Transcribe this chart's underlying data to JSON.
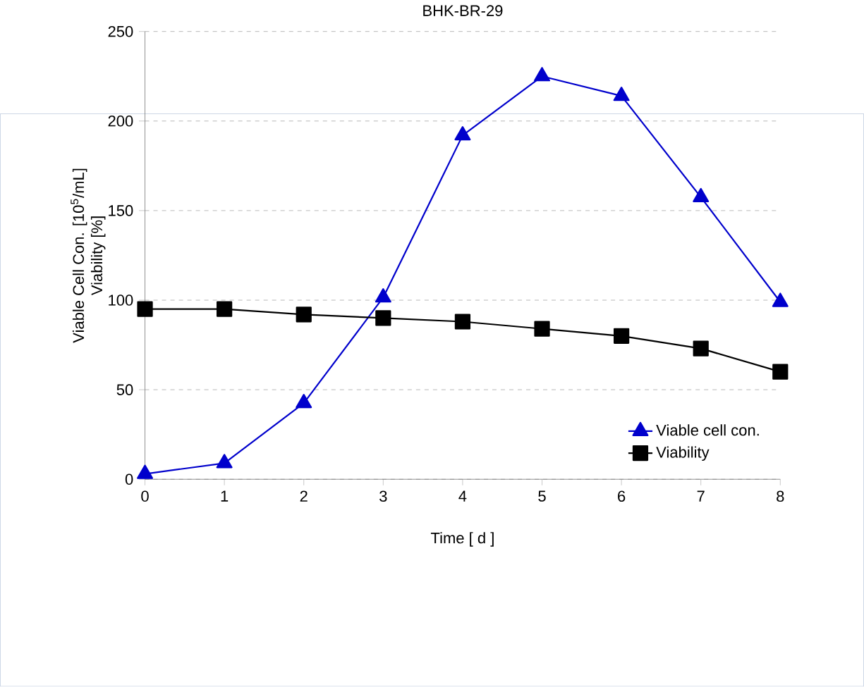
{
  "chart_data": {
    "type": "line",
    "title": "BHK-BR-29",
    "xlabel": "Time   [ d ]",
    "ylabel": [
      "Viable Cell Con.  [10$^{5}$/mL]",
      "Viability  [%]"
    ],
    "x": [
      0,
      1,
      2,
      3,
      4,
      5,
      6,
      7,
      8
    ],
    "series": [
      {
        "name": "Viable cell con.",
        "color": "#0000cc",
        "marker": "triangle",
        "values": [
          3,
          9,
          42.5,
          101.5,
          192,
          225,
          214,
          157.5,
          99
        ]
      },
      {
        "name": "Viability",
        "color": "#000000",
        "marker": "square",
        "values": [
          95,
          95,
          92,
          90,
          88,
          84,
          80,
          73,
          60
        ]
      }
    ],
    "xlim": [
      0,
      8
    ],
    "xticks": [
      0,
      1,
      2,
      3,
      4,
      5,
      6,
      7,
      8
    ],
    "ylim": [
      0,
      250
    ],
    "yticks": [
      0,
      50,
      100,
      150,
      200,
      250
    ],
    "grid": "y",
    "legend": "bottom right",
    "line_style": "solid"
  }
}
